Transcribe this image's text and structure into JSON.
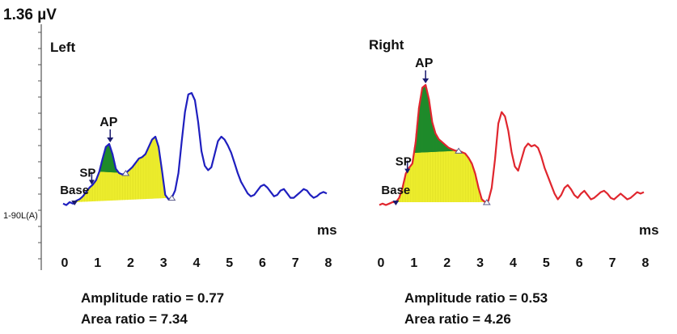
{
  "scale_label": "1.36 µV",
  "channel_label": "1-90L(A)",
  "x_unit": "ms",
  "colors": {
    "left_trace": "#1f1fbf",
    "right_trace": "#e0262e",
    "ap_fill": "#1f8a2a",
    "sp_fill": "#f2f230",
    "marker": "#1a1a6e"
  },
  "chart_data": [
    {
      "type": "line",
      "title": "Left",
      "xlabel": "ms",
      "ylabel": "",
      "xlim": [
        -0.1,
        8.1
      ],
      "ylim": [
        -0.3,
        1.0
      ],
      "x_ticks": [
        0,
        1,
        2,
        3,
        4,
        5,
        6,
        7,
        8
      ],
      "series": [
        {
          "name": "",
          "color": "#1f1fbf",
          "x": [
            -0.05,
            0.05,
            0.15,
            0.25,
            0.35,
            0.45,
            0.55,
            0.65,
            0.75,
            0.85,
            0.95,
            1.05,
            1.15,
            1.25,
            1.35,
            1.45,
            1.55,
            1.65,
            1.75,
            1.85,
            1.95,
            2.05,
            2.15,
            2.25,
            2.35,
            2.45,
            2.55,
            2.65,
            2.75,
            2.85,
            2.95,
            3.05,
            3.15,
            3.25,
            3.35,
            3.45,
            3.55,
            3.65,
            3.75,
            3.85,
            3.95,
            4.05,
            4.15,
            4.25,
            4.35,
            4.45,
            4.55,
            4.65,
            4.75,
            4.85,
            4.95,
            5.05,
            5.15,
            5.25,
            5.35,
            5.45,
            5.55,
            5.65,
            5.75,
            5.85,
            5.95,
            6.05,
            6.15,
            6.25,
            6.35,
            6.45,
            6.55,
            6.65,
            6.75,
            6.85,
            6.95,
            7.05,
            7.15,
            7.25,
            7.35,
            7.45,
            7.55,
            7.65,
            7.75,
            7.85,
            7.95
          ],
          "y": [
            -0.01,
            -0.02,
            0.0,
            -0.01,
            0.01,
            0.02,
            0.04,
            0.07,
            0.1,
            0.12,
            0.15,
            0.21,
            0.3,
            0.38,
            0.4,
            0.33,
            0.23,
            0.2,
            0.19,
            0.2,
            0.22,
            0.24,
            0.27,
            0.3,
            0.31,
            0.33,
            0.38,
            0.43,
            0.45,
            0.38,
            0.22,
            0.05,
            0.02,
            0.03,
            0.08,
            0.2,
            0.42,
            0.62,
            0.74,
            0.75,
            0.7,
            0.55,
            0.35,
            0.25,
            0.22,
            0.24,
            0.33,
            0.42,
            0.45,
            0.43,
            0.39,
            0.34,
            0.27,
            0.2,
            0.14,
            0.1,
            0.06,
            0.04,
            0.05,
            0.08,
            0.11,
            0.12,
            0.1,
            0.07,
            0.04,
            0.05,
            0.08,
            0.09,
            0.06,
            0.03,
            0.03,
            0.05,
            0.07,
            0.09,
            0.08,
            0.05,
            0.03,
            0.04,
            0.06,
            0.07,
            0.06
          ]
        }
      ],
      "markers": [
        {
          "label": "Base",
          "x": 0.3,
          "y": 0.0
        },
        {
          "label": "SP",
          "x": 0.82,
          "y": 0.12
        },
        {
          "label": "AP",
          "x": 1.38,
          "y": 0.4
        },
        {
          "label": "",
          "x": 1.85,
          "y": 0.2
        },
        {
          "label": "",
          "x": 3.25,
          "y": 0.03
        }
      ],
      "ap_region": [
        1.05,
        1.85
      ],
      "area_region": [
        0.3,
        3.25
      ],
      "ratios": [
        "Amplitude ratio = 0.77",
        "Area ratio = 7.34"
      ]
    },
    {
      "type": "line",
      "title": "Right",
      "xlabel": "ms",
      "ylabel": "",
      "xlim": [
        -0.1,
        8.1
      ],
      "ylim": [
        -0.3,
        1.0
      ],
      "x_ticks": [
        0,
        1,
        2,
        3,
        4,
        5,
        6,
        7,
        8
      ],
      "series": [
        {
          "name": "",
          "color": "#e0262e",
          "x": [
            -0.05,
            0.05,
            0.15,
            0.25,
            0.35,
            0.45,
            0.55,
            0.65,
            0.75,
            0.85,
            0.95,
            1.05,
            1.15,
            1.25,
            1.35,
            1.45,
            1.55,
            1.65,
            1.75,
            1.85,
            1.95,
            2.05,
            2.15,
            2.25,
            2.35,
            2.45,
            2.55,
            2.65,
            2.75,
            2.85,
            2.95,
            3.05,
            3.15,
            3.25,
            3.35,
            3.45,
            3.55,
            3.65,
            3.75,
            3.85,
            3.95,
            4.05,
            4.15,
            4.25,
            4.35,
            4.45,
            4.55,
            4.65,
            4.75,
            4.85,
            4.95,
            5.05,
            5.15,
            5.25,
            5.35,
            5.45,
            5.55,
            5.65,
            5.75,
            5.85,
            5.95,
            6.05,
            6.15,
            6.25,
            6.35,
            6.45,
            6.55,
            6.65,
            6.75,
            6.85,
            6.95,
            7.05,
            7.15,
            7.25,
            7.35,
            7.45,
            7.55,
            7.65,
            7.75,
            7.85,
            7.95
          ],
          "y": [
            -0.02,
            -0.01,
            -0.02,
            -0.01,
            0.0,
            0.0,
            0.03,
            0.1,
            0.2,
            0.24,
            0.27,
            0.42,
            0.66,
            0.8,
            0.82,
            0.72,
            0.56,
            0.48,
            0.44,
            0.42,
            0.4,
            0.38,
            0.37,
            0.36,
            0.36,
            0.35,
            0.34,
            0.31,
            0.27,
            0.2,
            0.1,
            0.02,
            0.0,
            0.01,
            0.1,
            0.3,
            0.55,
            0.63,
            0.6,
            0.5,
            0.35,
            0.25,
            0.22,
            0.3,
            0.38,
            0.41,
            0.39,
            0.4,
            0.38,
            0.32,
            0.24,
            0.18,
            0.12,
            0.06,
            0.02,
            0.05,
            0.1,
            0.12,
            0.09,
            0.05,
            0.03,
            0.06,
            0.08,
            0.05,
            0.02,
            0.03,
            0.05,
            0.07,
            0.08,
            0.06,
            0.03,
            0.02,
            0.04,
            0.06,
            0.04,
            0.02,
            0.03,
            0.05,
            0.07,
            0.06,
            0.07
          ]
        }
      ],
      "markers": [
        {
          "label": "Base",
          "x": 0.45,
          "y": 0.0
        },
        {
          "label": "SP",
          "x": 0.8,
          "y": 0.2
        },
        {
          "label": "AP",
          "x": 1.35,
          "y": 0.82
        },
        {
          "label": "",
          "x": 2.35,
          "y": 0.36
        },
        {
          "label": "",
          "x": 3.2,
          "y": 0.0
        }
      ],
      "ap_region": [
        1.0,
        2.35
      ],
      "area_region": [
        0.45,
        3.2
      ],
      "ratios": [
        "Amplitude ratio = 0.53",
        "Area ratio = 4.26"
      ]
    }
  ]
}
